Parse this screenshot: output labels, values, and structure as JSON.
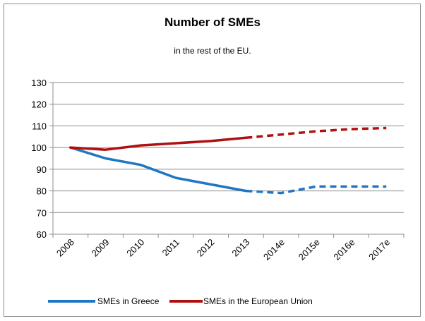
{
  "chart_data": {
    "type": "line",
    "title": "Number of SMEs",
    "subtitle": "in the rest of the EU.",
    "categories": [
      "2008",
      "2009",
      "2010",
      "2011",
      "2012",
      "2013",
      "2014e",
      "2015e",
      "2016e",
      "2017e"
    ],
    "ylim": [
      60,
      130
    ],
    "yticks": [
      "60",
      "70",
      "80",
      "90",
      "100",
      "110",
      "120",
      "130"
    ],
    "grid": true,
    "legend_position": "bottom",
    "estimated_from_index": 5,
    "series": [
      {
        "name": "SMEs in Greece",
        "color": "#1f77c4",
        "values": [
          100,
          95,
          92,
          86,
          83,
          80,
          79,
          82,
          82,
          82
        ]
      },
      {
        "name": "SMEs in the European Union",
        "color": "#b01010",
        "values": [
          100,
          99,
          101,
          102,
          103,
          104.5,
          106,
          107.5,
          108.5,
          109
        ]
      }
    ]
  }
}
